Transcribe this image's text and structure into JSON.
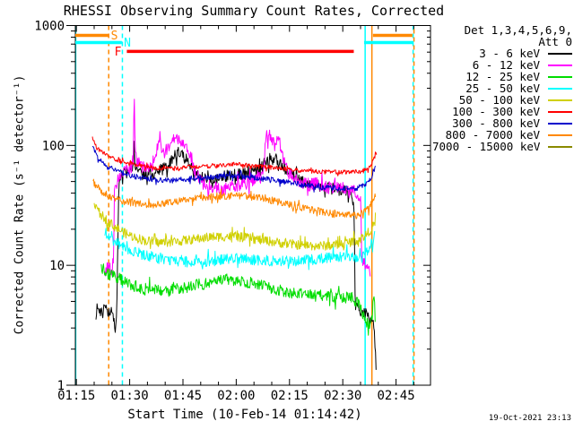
{
  "title": "RHESSI Observing Summary Count Rates, Corrected",
  "generated_timestamp": "19-Oct-2021 23:13",
  "legend": {
    "detector_line": "Det 1,3,4,5,6,9,",
    "attenuator_line": "Att 0",
    "entries": [
      {
        "label": "3 - 6 keV",
        "color": "#000000"
      },
      {
        "label": "6 - 12 keV",
        "color": "#ff00ff"
      },
      {
        "label": "12 - 25 keV",
        "color": "#00dd00"
      },
      {
        "label": "25 - 50 keV",
        "color": "#00ffff"
      },
      {
        "label": "50 - 100 keV",
        "color": "#d0d000"
      },
      {
        "label": "100 - 300 keV",
        "color": "#ff0000"
      },
      {
        "label": "300 - 800 keV",
        "color": "#0000cc"
      },
      {
        "label": "800 - 7000 keV",
        "color": "#ff8800"
      },
      {
        "label": "7000 - 15000 keV",
        "color": "#8a8a00"
      }
    ]
  },
  "chart_data": {
    "type": "line",
    "title": "RHESSI Observing Summary Count Rates, Corrected",
    "xlabel": "Start Time (10-Feb-14 01:14:42)",
    "ylabel": "Corrected Count Rate (s⁻¹ detector⁻¹)",
    "x_axis": {
      "unit": "minutes from 01:14:42",
      "range": [
        0,
        100
      ],
      "major_ticks": [
        {
          "t": 0.3,
          "label": "01:15"
        },
        {
          "t": 15.3,
          "label": "01:30"
        },
        {
          "t": 30.3,
          "label": "01:45"
        },
        {
          "t": 45.3,
          "label": "02:00"
        },
        {
          "t": 60.3,
          "label": "02:15"
        },
        {
          "t": 75.3,
          "label": "02:30"
        },
        {
          "t": 90.3,
          "label": "02:45"
        }
      ],
      "minor_tick_step": 5
    },
    "y_axis": {
      "scale": "log",
      "range": [
        1,
        1000
      ],
      "major_ticks": [
        {
          "v": 1000,
          "label": "1000"
        },
        {
          "v": 100,
          "label": "100"
        },
        {
          "v": 10,
          "label": "10"
        },
        {
          "v": 1,
          "label": "1"
        }
      ]
    },
    "flag_bars": [
      {
        "name": "saa-flag",
        "label": "S",
        "color": "#ff8800",
        "rate": 828,
        "label_t": 10.98,
        "segments": [
          [
            0,
            9.34
          ],
          [
            83.8,
            94.9
          ]
        ]
      },
      {
        "name": "night-flag",
        "label": "N",
        "color": "#00ffff",
        "rate": 721,
        "label_t": 14.65,
        "segments": [
          [
            0,
            13.1
          ],
          [
            81.3,
            95.2
          ]
        ]
      },
      {
        "name": "flare-flag",
        "label": "F",
        "color": "#ff0000",
        "rate": 608,
        "label_t": 12.0,
        "segments": [
          [
            14.5,
            78.4
          ]
        ]
      }
    ],
    "event_lines": [
      {
        "t": 0.1,
        "color": "#00ffff",
        "style": "solid"
      },
      {
        "t": 9.4,
        "color": "#ff8800",
        "style": "dashed"
      },
      {
        "t": 13.25,
        "color": "#00ffff",
        "style": "dashed"
      },
      {
        "t": 81.6,
        "color": "#00ffff",
        "style": "solid"
      },
      {
        "t": 83.5,
        "color": "#ff8800",
        "style": "solid"
      },
      {
        "t": 95.1,
        "color": "#00ffff",
        "style": "dashed"
      },
      {
        "t": 95.35,
        "color": "#ff8800",
        "style": "dashed",
        "dash_offset": 5
      }
    ],
    "series": [
      {
        "name": "3 - 6 keV",
        "color": "#000000",
        "noise": 0.05,
        "points": [
          [
            5.8,
            4.3
          ],
          [
            8,
            4.2
          ],
          [
            10,
            4.1
          ],
          [
            10.8,
            3.4
          ],
          [
            11.2,
            2.9
          ],
          [
            11.6,
            3.5
          ],
          [
            11.9,
            12
          ],
          [
            12.2,
            42
          ],
          [
            13,
            55
          ],
          [
            14,
            58
          ],
          [
            15,
            62
          ],
          [
            16.3,
            68
          ],
          [
            16.5,
            120
          ],
          [
            16.7,
            66
          ],
          [
            18,
            58
          ],
          [
            20,
            57
          ],
          [
            22,
            58
          ],
          [
            24,
            62
          ],
          [
            26,
            68
          ],
          [
            27.5,
            78
          ],
          [
            28.8,
            88
          ],
          [
            30,
            83
          ],
          [
            31.5,
            74
          ],
          [
            33,
            62
          ],
          [
            35,
            55
          ],
          [
            37,
            52
          ],
          [
            40,
            54
          ],
          [
            44,
            56
          ],
          [
            48,
            58
          ],
          [
            52,
            63
          ],
          [
            54,
            73
          ],
          [
            55.5,
            82
          ],
          [
            56.5,
            76
          ],
          [
            58,
            67
          ],
          [
            60,
            59
          ],
          [
            62,
            55
          ],
          [
            64,
            51
          ],
          [
            66,
            48
          ],
          [
            69,
            46
          ],
          [
            72,
            44
          ],
          [
            74,
            43
          ],
          [
            76,
            42
          ],
          [
            78,
            40
          ],
          [
            78.5,
            25
          ],
          [
            78.8,
            4.6
          ],
          [
            80,
            4.2
          ],
          [
            81.5,
            4.1
          ],
          [
            82.5,
            3.8
          ],
          [
            83,
            3.6
          ],
          [
            83.5,
            3.9
          ],
          [
            84,
            3.3
          ],
          [
            84.4,
            2.1
          ],
          [
            84.7,
            1.3
          ]
        ]
      },
      {
        "name": "6 - 12 keV",
        "color": "#ff00ff",
        "noise": 0.055,
        "points": [
          [
            8.3,
            9
          ],
          [
            9.5,
            10
          ],
          [
            10.5,
            8.5
          ],
          [
            10.8,
            13
          ],
          [
            11,
            38
          ],
          [
            11.5,
            47
          ],
          [
            12.5,
            55
          ],
          [
            13.5,
            60
          ],
          [
            15,
            62
          ],
          [
            16.3,
            70
          ],
          [
            16.45,
            160
          ],
          [
            16.6,
            290
          ],
          [
            16.8,
            110
          ],
          [
            17,
            88
          ],
          [
            17.5,
            73
          ],
          [
            18.5,
            68
          ],
          [
            20,
            66
          ],
          [
            22,
            64
          ],
          [
            23.9,
            130
          ],
          [
            24.2,
            82
          ],
          [
            25,
            86
          ],
          [
            26,
            95
          ],
          [
            27.5,
            110
          ],
          [
            28.6,
            118
          ],
          [
            29.5,
            112
          ],
          [
            30.5,
            107
          ],
          [
            31.5,
            95
          ],
          [
            32.5,
            80
          ],
          [
            33.5,
            62
          ],
          [
            35,
            52
          ],
          [
            37,
            46
          ],
          [
            39,
            44
          ],
          [
            41,
            43
          ],
          [
            44,
            45
          ],
          [
            47,
            48
          ],
          [
            50,
            50
          ],
          [
            53,
            56
          ],
          [
            53.8,
            140
          ],
          [
            54.1,
            100
          ],
          [
            54.6,
            124
          ],
          [
            55.5,
            110
          ],
          [
            56.3,
            94
          ],
          [
            57,
            114
          ],
          [
            57.8,
            99
          ],
          [
            58.8,
            74
          ],
          [
            60,
            60
          ],
          [
            62,
            52
          ],
          [
            64,
            48
          ],
          [
            66,
            47
          ],
          [
            68,
            48
          ],
          [
            70,
            46
          ],
          [
            72,
            44
          ],
          [
            74,
            45
          ],
          [
            76,
            43
          ],
          [
            78,
            42
          ],
          [
            79,
            40
          ],
          [
            80.4,
            38
          ],
          [
            80.55,
            11
          ],
          [
            81.5,
            10
          ],
          [
            82.5,
            9
          ],
          [
            83.1,
            8.5
          ]
        ]
      },
      {
        "name": "12 - 25 keV",
        "color": "#00dd00",
        "noise": 0.05,
        "points": [
          [
            7.3,
            9.5
          ],
          [
            9,
            8.6
          ],
          [
            12,
            7.8
          ],
          [
            15,
            7
          ],
          [
            18,
            6.5
          ],
          [
            21,
            6.2
          ],
          [
            25,
            6.1
          ],
          [
            29,
            6.3
          ],
          [
            34,
            6.8
          ],
          [
            39,
            7.3
          ],
          [
            43,
            7.6
          ],
          [
            47,
            7.4
          ],
          [
            51,
            6.9
          ],
          [
            55,
            6.4
          ],
          [
            59,
            6
          ],
          [
            63,
            5.8
          ],
          [
            67,
            5.6
          ],
          [
            71,
            5.5
          ],
          [
            75,
            5.4
          ],
          [
            78,
            5.3
          ],
          [
            80,
            4.6
          ],
          [
            81,
            3.9
          ],
          [
            82,
            3.4
          ],
          [
            82.8,
            3.3
          ],
          [
            83.6,
            3.7
          ],
          [
            84.1,
            7
          ],
          [
            84.5,
            2.6
          ]
        ]
      },
      {
        "name": "25 - 50 keV",
        "color": "#00ffff",
        "noise": 0.045,
        "points": [
          [
            8.3,
            19
          ],
          [
            10,
            16.5
          ],
          [
            13.3,
            14.5
          ],
          [
            16,
            13.2
          ],
          [
            19,
            12.3
          ],
          [
            23,
            11.5
          ],
          [
            27,
            11
          ],
          [
            32,
            10.7
          ],
          [
            37,
            10.8
          ],
          [
            42,
            11.2
          ],
          [
            47,
            11.4
          ],
          [
            52,
            11
          ],
          [
            57,
            10.8
          ],
          [
            62,
            10.9
          ],
          [
            67,
            11.2
          ],
          [
            72,
            11.7
          ],
          [
            76,
            11.9
          ],
          [
            79,
            11.7
          ],
          [
            81,
            12
          ],
          [
            82.5,
            13.5
          ],
          [
            83.8,
            16
          ],
          [
            84.4,
            18
          ]
        ]
      },
      {
        "name": "50 - 100 keV",
        "color": "#d0d000",
        "noise": 0.04,
        "points": [
          [
            5.3,
            33
          ],
          [
            7,
            27
          ],
          [
            10,
            22
          ],
          [
            14,
            18.5
          ],
          [
            17,
            17
          ],
          [
            20,
            16
          ],
          [
            24,
            15.5
          ],
          [
            28,
            15.8
          ],
          [
            32,
            16.3
          ],
          [
            38,
            17.2
          ],
          [
            44,
            17.5
          ],
          [
            49,
            16.8
          ],
          [
            54,
            16
          ],
          [
            59,
            15.2
          ],
          [
            64,
            14.7
          ],
          [
            69,
            14.5
          ],
          [
            73,
            14.8
          ],
          [
            77,
            15.5
          ],
          [
            80,
            16.5
          ],
          [
            82,
            18
          ],
          [
            83.5,
            20.5
          ],
          [
            84.6,
            23
          ]
        ]
      },
      {
        "name": "100 - 300 keV",
        "color": "#ff0000",
        "noise": 0.018,
        "points": [
          [
            4.8,
            115
          ],
          [
            6,
            95
          ],
          [
            9,
            82
          ],
          [
            14,
            72
          ],
          [
            18,
            68
          ],
          [
            22,
            65
          ],
          [
            26,
            64
          ],
          [
            32,
            66
          ],
          [
            40,
            68
          ],
          [
            45.7,
            70
          ],
          [
            50,
            67
          ],
          [
            54.5,
            66
          ],
          [
            58,
            64
          ],
          [
            62,
            62
          ],
          [
            66,
            61
          ],
          [
            69.7,
            60
          ],
          [
            75,
            60
          ],
          [
            78.5,
            60
          ],
          [
            81,
            61
          ],
          [
            82.3,
            63
          ],
          [
            83.1,
            66
          ],
          [
            83.8,
            72
          ],
          [
            84.6,
            88
          ],
          [
            84.8,
            82
          ]
        ]
      },
      {
        "name": "300 - 800 keV",
        "color": "#0000cc",
        "noise": 0.022,
        "points": [
          [
            4.8,
            100
          ],
          [
            6,
            82
          ],
          [
            9,
            66
          ],
          [
            14,
            58
          ],
          [
            18,
            54
          ],
          [
            22,
            52
          ],
          [
            27,
            51
          ],
          [
            34,
            53
          ],
          [
            40,
            55
          ],
          [
            46,
            56
          ],
          [
            50,
            54
          ],
          [
            55,
            52
          ],
          [
            60,
            49
          ],
          [
            64,
            47
          ],
          [
            68,
            45
          ],
          [
            72,
            44
          ],
          [
            76,
            43.5
          ],
          [
            79,
            44
          ],
          [
            81,
            46
          ],
          [
            82.5,
            50
          ],
          [
            83.5,
            55
          ],
          [
            84.6,
            66
          ]
        ]
      },
      {
        "name": "800 - 7000 keV",
        "color": "#ff8800",
        "noise": 0.03,
        "points": [
          [
            5,
            50
          ],
          [
            7,
            42
          ],
          [
            10,
            37
          ],
          [
            14,
            34
          ],
          [
            18,
            32.5
          ],
          [
            22,
            32
          ],
          [
            28,
            34
          ],
          [
            35,
            36.5
          ],
          [
            42,
            38
          ],
          [
            47,
            38
          ],
          [
            52,
            36.5
          ],
          [
            57,
            34
          ],
          [
            62,
            31
          ],
          [
            67,
            29
          ],
          [
            72,
            27
          ],
          [
            76,
            26
          ],
          [
            79,
            26
          ],
          [
            81,
            27.5
          ],
          [
            82.5,
            30
          ],
          [
            83.5,
            34
          ],
          [
            84.6,
            40
          ]
        ]
      },
      {
        "name": "7000 - 15000 keV",
        "color": "#8a8a00",
        "noise": 0,
        "points": []
      }
    ]
  }
}
